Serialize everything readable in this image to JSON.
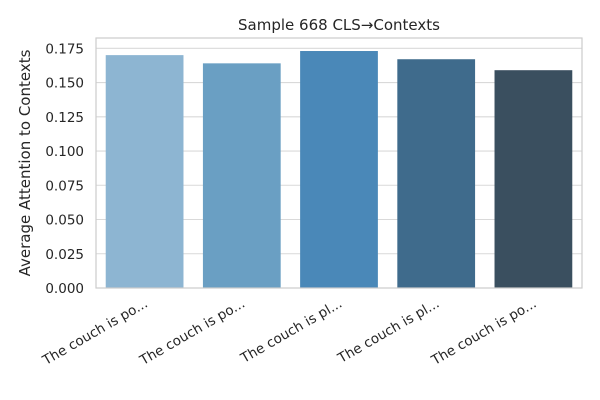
{
  "chart_data": {
    "type": "bar",
    "title": "Sample 668 CLS→Contexts",
    "xlabel": "",
    "ylabel": "Average Attention to Contexts",
    "categories": [
      "The couch is po...",
      "The couch is po...",
      "The couch is pl...",
      "The couch is pl...",
      "The couch is po..."
    ],
    "values": [
      0.17,
      0.164,
      0.173,
      0.167,
      0.159
    ],
    "colors": [
      "#8db5d2",
      "#6a9fc3",
      "#4a88b8",
      "#3f6b8c",
      "#3a4f5f"
    ],
    "ylim": [
      0,
      0.1825
    ],
    "yticks": [
      "0.000",
      "0.025",
      "0.050",
      "0.075",
      "0.100",
      "0.125",
      "0.150",
      "0.175"
    ],
    "grid": true,
    "legend": "none"
  }
}
